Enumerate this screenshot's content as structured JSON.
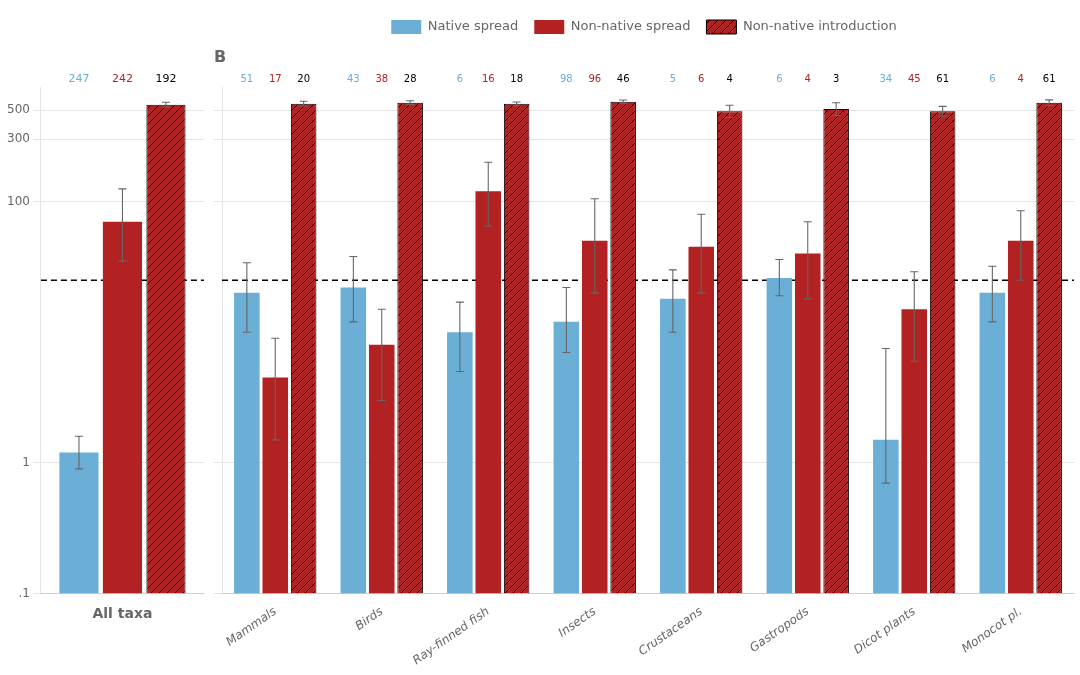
{
  "chart_data": [
    {
      "type": "bar",
      "x_label": "All taxa",
      "categories": [
        null
      ],
      "series": [
        {
          "name": "Native spread",
          "color": "#6baed6",
          "values": [
            1.2
          ],
          "error_plus": [
            0.4
          ],
          "error_minus": [
            0.3
          ],
          "n": [
            247
          ]
        },
        {
          "name": "Non-native spread",
          "color": "#b22222",
          "values": [
            70
          ],
          "error_plus": [
            55
          ],
          "error_minus": [
            35
          ],
          "n": [
            242
          ]
        },
        {
          "name": "Non-native introduction",
          "color": "#b22222",
          "values": [
            550
          ],
          "error_plus": [
            25
          ],
          "error_minus": [
            20
          ],
          "n": [
            192
          ]
        }
      ],
      "log": "y",
      "ylim": [
        0.1,
        750
      ],
      "yticks": [
        {
          "value": 0.1,
          "label": ".1"
        },
        1,
        100,
        300,
        500
      ],
      "grid": true,
      "reference_line": 25,
      "tick_labels": "y"
    },
    {
      "type": "bar",
      "title": "B",
      "categories": [
        "Mammals",
        "Birds",
        "Ray-finned fish",
        "Insects",
        "Crustaceans",
        "Gastropods",
        "Dicot plants",
        "Monocot pl."
      ],
      "series": [
        {
          "name": "Native spread",
          "color": "#6baed6",
          "values": [
            20,
            22,
            10,
            12,
            18,
            26,
            1.5,
            20
          ],
          "error_plus": [
            14,
            16,
            7,
            10,
            12,
            10,
            6,
            12
          ],
          "error_minus": [
            10,
            10,
            5,
            5,
            8,
            7,
            0.8,
            8
          ],
          "n": [
            51,
            43,
            6,
            98,
            5,
            6,
            34,
            6
          ]
        },
        {
          "name": "Non-native spread",
          "color": "#b22222",
          "values": [
            4.5,
            8.0,
            120,
            50,
            45,
            40,
            15,
            50
          ],
          "error_plus": [
            4.5,
            7.0,
            80,
            55,
            35,
            30,
            14,
            35
          ],
          "error_minus": [
            3.0,
            5.0,
            55,
            30,
            25,
            22,
            9,
            25
          ],
          "n": [
            17,
            38,
            16,
            96,
            6,
            4,
            45,
            4
          ]
        },
        {
          "name": "Non-native introduction",
          "color": "#b22222",
          "values": [
            560,
            570,
            560,
            580,
            490,
            510,
            490,
            570
          ],
          "error_plus": [
            25,
            20,
            18,
            18,
            55,
            60,
            45,
            30
          ],
          "error_minus": [
            22,
            18,
            16,
            16,
            50,
            55,
            40,
            28
          ],
          "n": [
            20,
            28,
            18,
            46,
            4,
            3,
            61,
            61
          ]
        }
      ],
      "log": "y",
      "ylim": [
        0.1,
        750
      ],
      "yticks": [
        {
          "value": 0.1,
          "label": ".1"
        },
        1,
        100,
        300,
        500
      ],
      "grid": true,
      "reference_line": 25,
      "legend": "top",
      "tick_labels": "x"
    }
  ]
}
